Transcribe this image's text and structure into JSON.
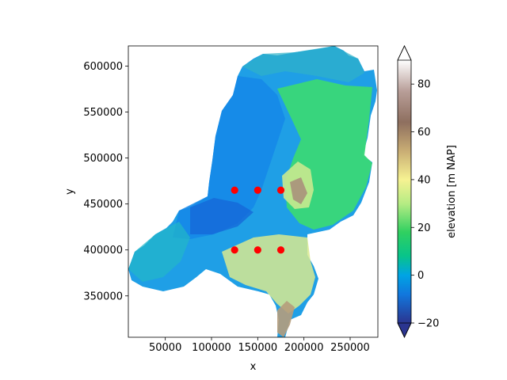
{
  "chart_data": {
    "type": "heatmap",
    "title": "",
    "xlabel": "x",
    "ylabel": "y",
    "xlim": [
      10000,
      280000
    ],
    "ylim": [
      305000,
      622000
    ],
    "xticks": [
      50000,
      100000,
      150000,
      200000,
      250000
    ],
    "xtick_labels": [
      "50000",
      "100000",
      "150000",
      "200000",
      "250000"
    ],
    "yticks": [
      350000,
      400000,
      450000,
      500000,
      550000,
      600000
    ],
    "ytick_labels": [
      "350000",
      "400000",
      "450000",
      "500000",
      "550000",
      "600000"
    ],
    "grid": false,
    "colorbar": {
      "label": "elevation [m NAP]",
      "vmin": -20,
      "vmax": 90,
      "ticks": [
        -20,
        0,
        20,
        40,
        60,
        80
      ],
      "tick_labels": [
        "−20",
        "0",
        "20",
        "40",
        "60",
        "80"
      ],
      "extend": "both",
      "colormap": "terrain",
      "stops": [
        {
          "v": -20,
          "color": "#2b3590"
        },
        {
          "v": -8,
          "color": "#1177dd"
        },
        {
          "v": 0,
          "color": "#00a4e4"
        },
        {
          "v": 8,
          "color": "#08c48a"
        },
        {
          "v": 18,
          "color": "#30d060"
        },
        {
          "v": 30,
          "color": "#b6ec84"
        },
        {
          "v": 40,
          "color": "#f6f292"
        },
        {
          "v": 52,
          "color": "#c9ad74"
        },
        {
          "v": 64,
          "color": "#8e6f5f"
        },
        {
          "v": 77,
          "color": "#b89e98"
        },
        {
          "v": 90,
          "color": "#ffffff"
        }
      ]
    },
    "points": {
      "color": "#ff0000",
      "x": [
        125000,
        150000,
        175000,
        125000,
        150000,
        175000
      ],
      "y": [
        465000,
        465000,
        465000,
        400000,
        400000,
        400000
      ]
    }
  }
}
